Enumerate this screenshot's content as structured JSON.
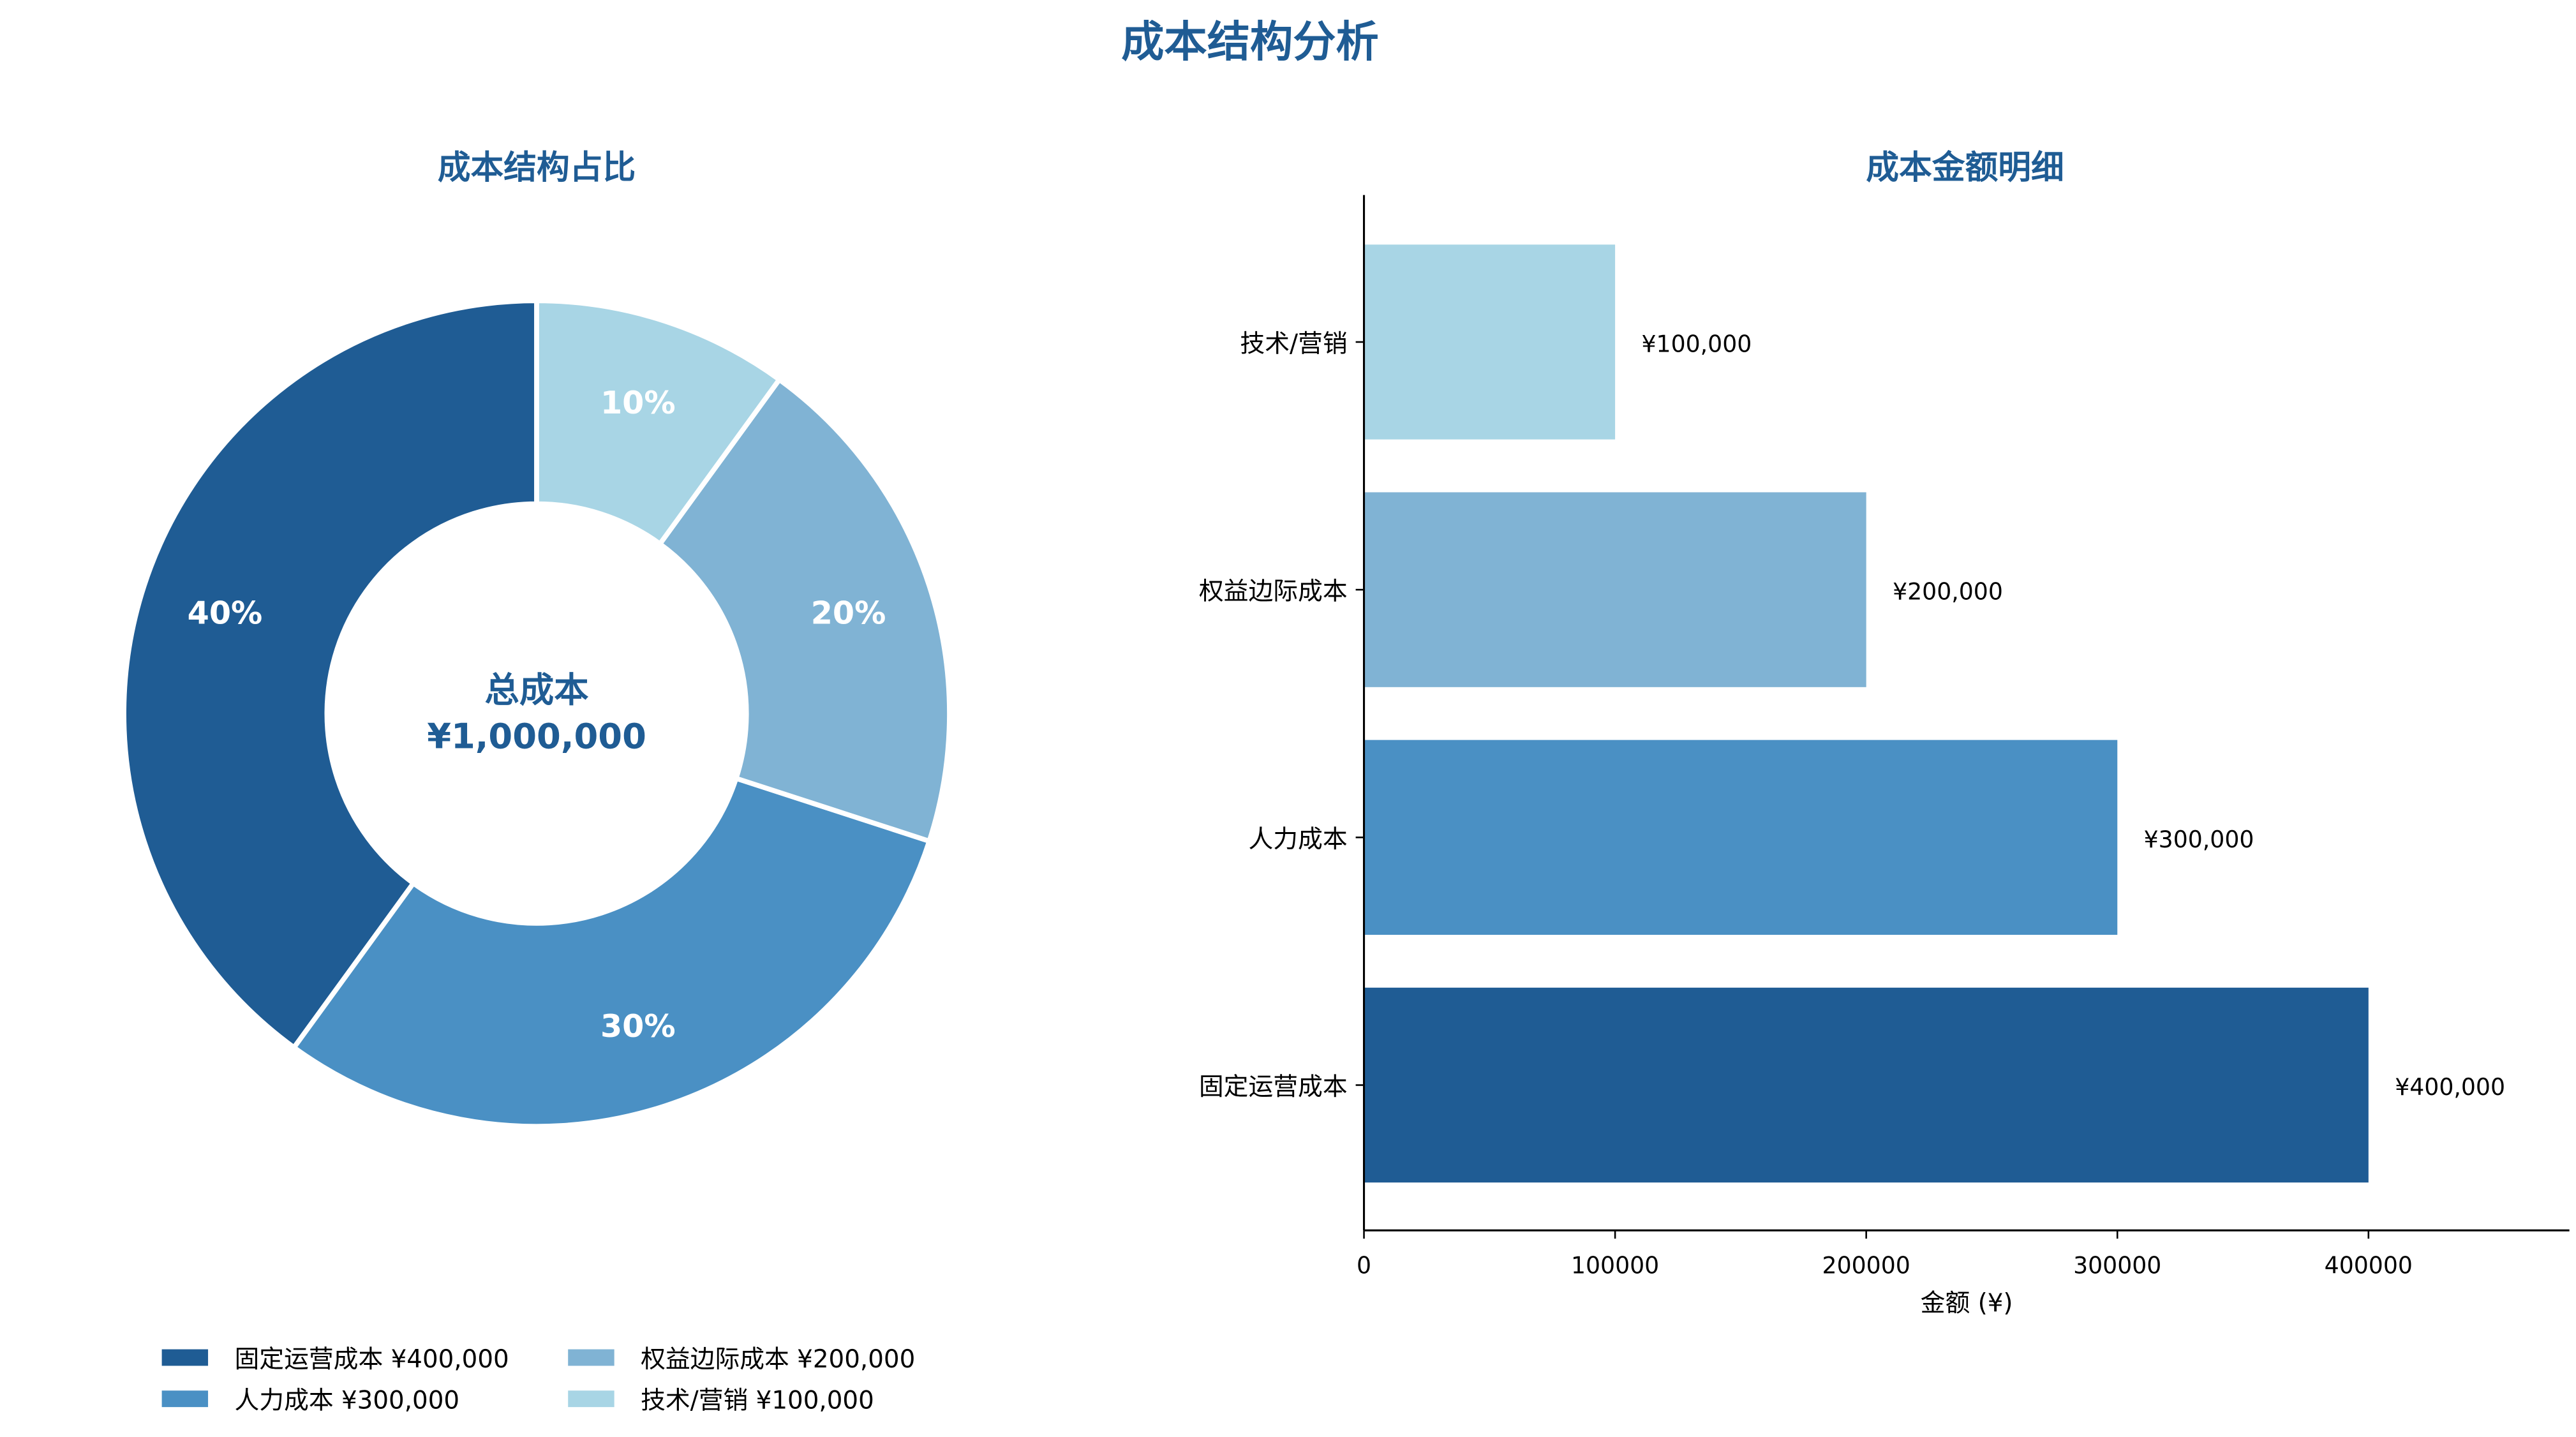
{
  "title": "成本结构分析",
  "colors": [
    "#1f5c94",
    "#4a90c4",
    "#80b3d4",
    "#a8d5e5"
  ],
  "chart_data": [
    {
      "type": "pie",
      "subtype": "donut",
      "title": "成本结构占比",
      "categories": [
        "固定运营成本",
        "人力成本",
        "权益边际成本",
        "技术/营销"
      ],
      "values": [
        400000,
        300000,
        200000,
        100000
      ],
      "percent_labels": [
        "40%",
        "30%",
        "20%",
        "10%"
      ],
      "center_label": [
        "总成本",
        "¥1,000,000"
      ],
      "legend": {
        "placement": "bottom-left",
        "entries": [
          "固定运营成本 ¥400,000",
          "人力成本 ¥300,000",
          "权益边际成本 ¥200,000",
          "技术/营销 ¥100,000"
        ]
      }
    },
    {
      "type": "bar",
      "orientation": "horizontal",
      "title": "成本金额明细",
      "categories": [
        "固定运营成本",
        "人力成本",
        "权益边际成本",
        "技术/营销"
      ],
      "values": [
        400000,
        300000,
        200000,
        100000
      ],
      "data_labels": [
        "¥400,000",
        "¥300,000",
        "¥200,000",
        "¥100,000"
      ],
      "xlabel": "金额 (¥)",
      "ylabel": "",
      "xlim": [
        0,
        480000
      ],
      "xticks": [
        "0",
        "100000",
        "200000",
        "300000",
        "400000"
      ],
      "grid": false
    }
  ]
}
